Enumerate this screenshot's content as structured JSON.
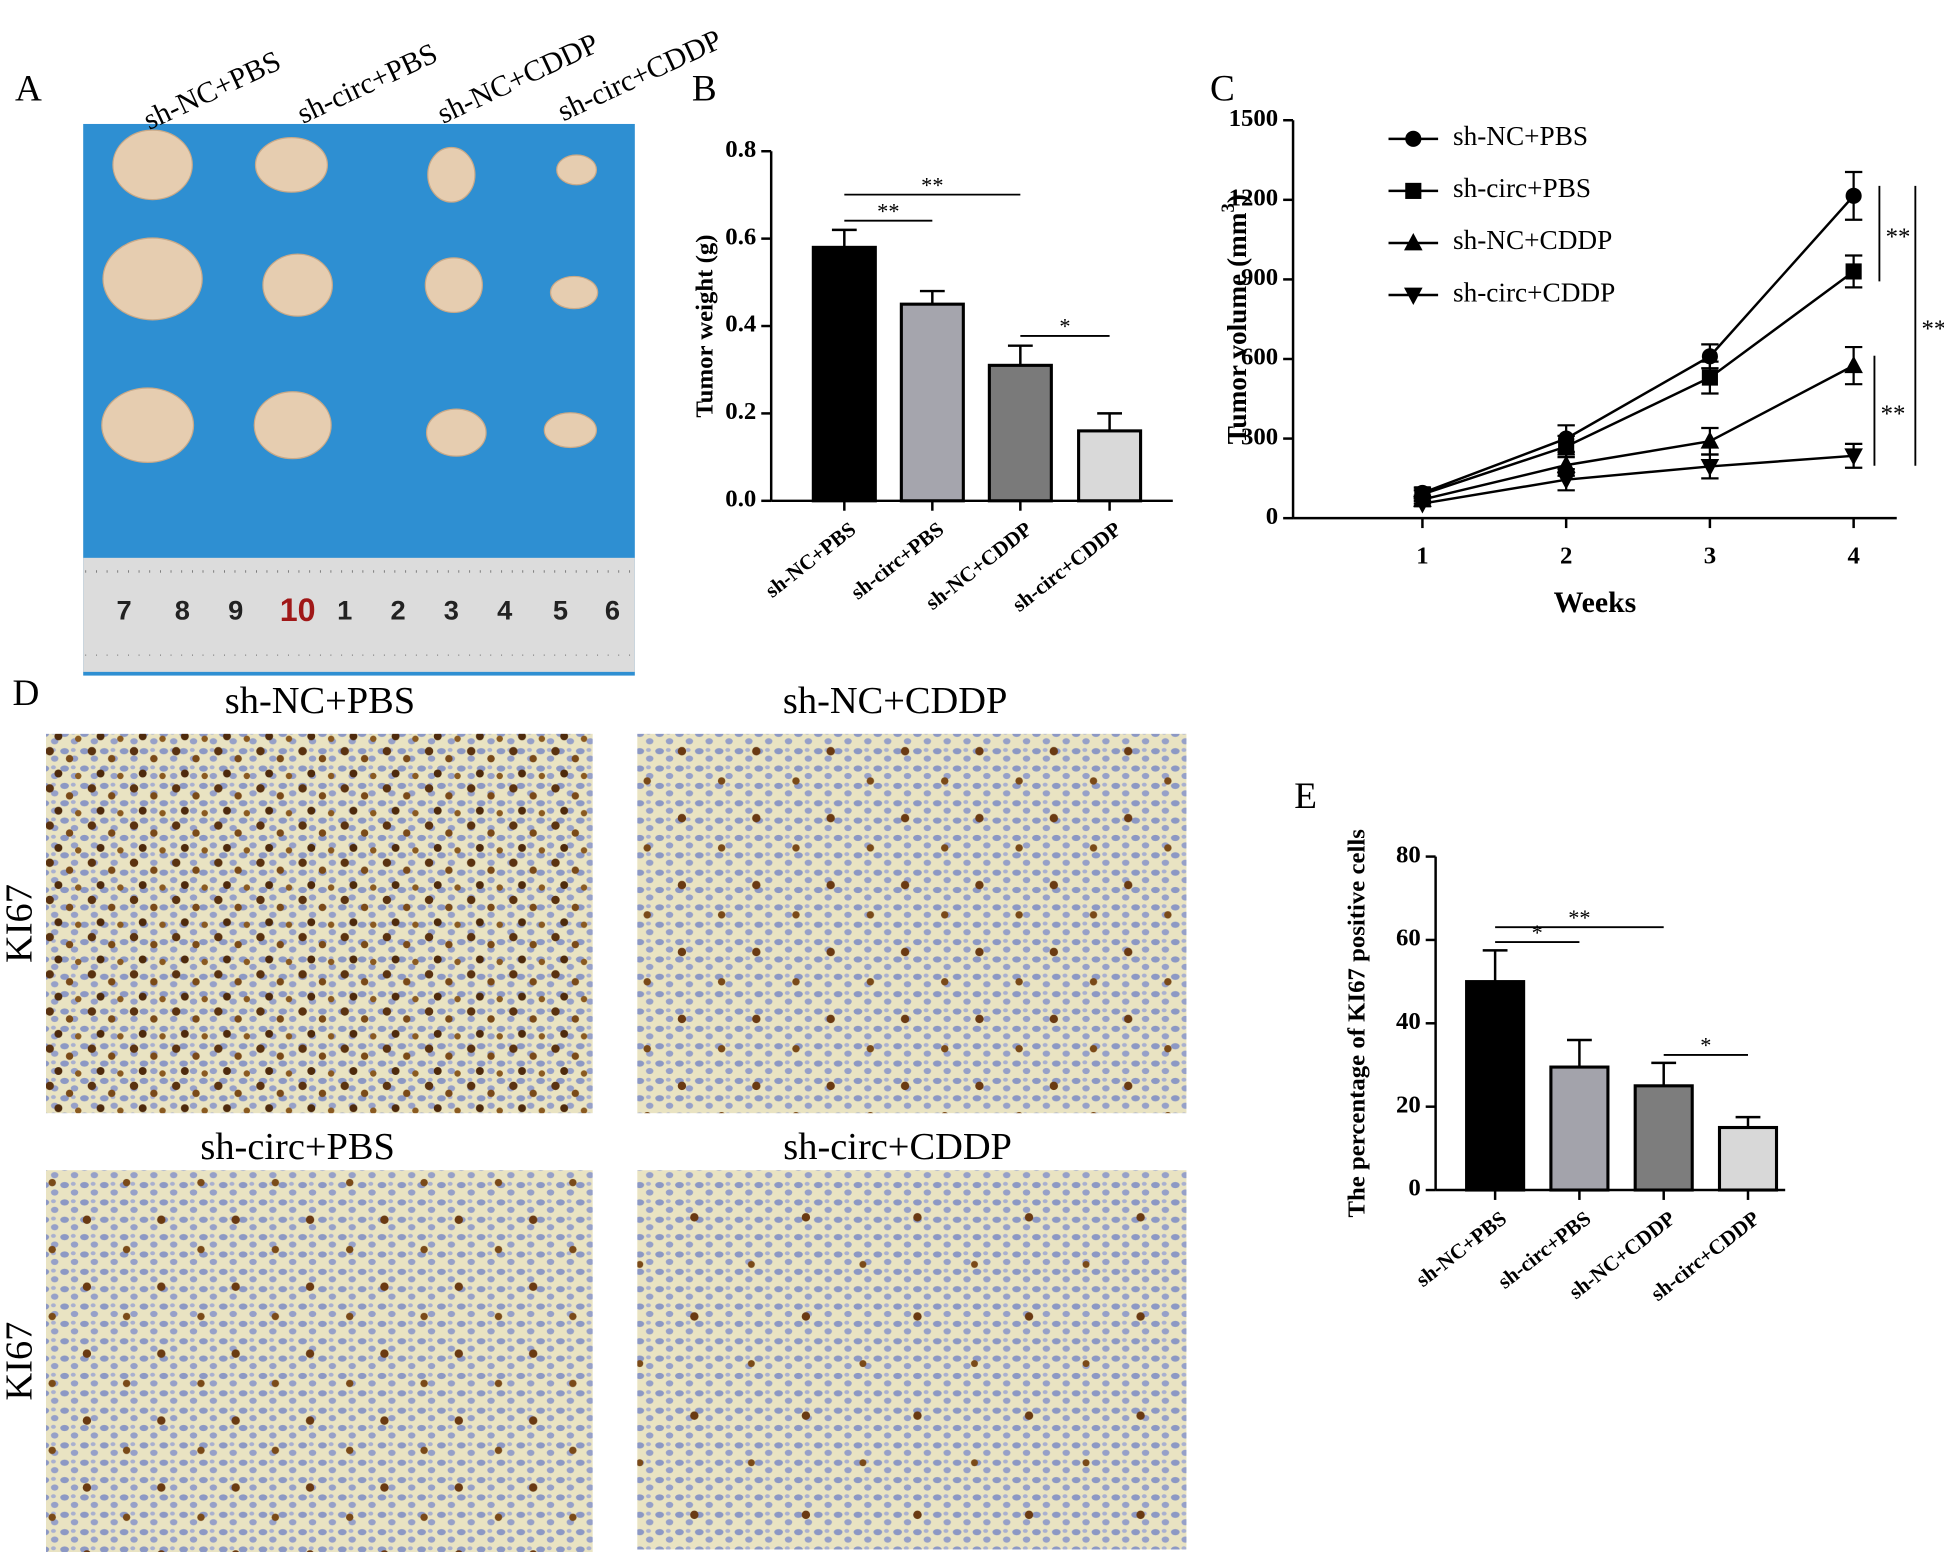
{
  "panel_labels": [
    "A",
    "B",
    "C",
    "D",
    "E"
  ],
  "photo": {
    "column_labels": [
      "sh-NC+PBS",
      "sh-circ+PBS",
      "sh-NC+CDDP",
      "sh-circ+CDDP"
    ],
    "ruler_labels": [
      "7",
      "8",
      "9",
      "10",
      "1",
      "2",
      "3",
      "4",
      "5",
      "6"
    ]
  },
  "ihc": {
    "titles": [
      "sh-NC+PBS",
      "sh-NC+CDDP",
      "sh-circ+PBS",
      "sh-circ+CDDP"
    ],
    "row_labels": [
      "KI67",
      "KI67"
    ]
  },
  "chart_data": [
    {
      "type": "bar",
      "ylabel": "Tumor weight (g)",
      "categories": [
        "sh-NC+PBS",
        "sh-circ+PBS",
        "sh-NC+CDDP",
        "sh-circ+CDDP"
      ],
      "values": [
        0.58,
        0.45,
        0.31,
        0.16
      ],
      "errors": [
        0.04,
        0.03,
        0.045,
        0.04
      ],
      "colors": [
        "#000000",
        "#a5a5ad",
        "#7a7a7a",
        "#d9d9d9"
      ],
      "ylim": [
        0,
        0.8
      ],
      "yticks": [
        {
          "value": 0,
          "label": "0.0"
        },
        0.2,
        0.4,
        0.6,
        0.8
      ],
      "annotations": [
        {
          "text": "**",
          "between": [
            0,
            1
          ]
        },
        {
          "text": "**",
          "between": [
            0,
            2
          ]
        },
        {
          "text": "*",
          "between": [
            2,
            3
          ]
        }
      ]
    },
    {
      "type": "line",
      "ylabel": [
        "Tumor volume (mm",
        "3",
        ")"
      ],
      "xlabel": "Weeks",
      "x": [
        1,
        2,
        3,
        4
      ],
      "xlim": [
        0.1,
        4.3
      ],
      "xticks": [
        1,
        2,
        3,
        4
      ],
      "ylim": [
        0,
        1500
      ],
      "yticks": [
        0,
        300,
        600,
        900,
        1200,
        1500
      ],
      "series": [
        {
          "name": "sh-NC+PBS",
          "color": "#000000",
          "marker": "circle",
          "values": [
            95,
            300,
            610,
            1215
          ],
          "errors": [
            20,
            50,
            45,
            90
          ]
        },
        {
          "name": "sh-circ+PBS",
          "color": "#000000",
          "marker": "square",
          "values": [
            90,
            270,
            530,
            930
          ],
          "errors": [
            15,
            40,
            60,
            60
          ]
        },
        {
          "name": "sh-NC+CDDP",
          "color": "#000000",
          "marker": "triangle-up",
          "values": [
            70,
            200,
            290,
            575
          ],
          "errors": [
            15,
            40,
            50,
            70
          ]
        },
        {
          "name": "sh-circ+CDDP",
          "color": "#000000",
          "marker": "triangle-down",
          "values": [
            55,
            145,
            195,
            235
          ],
          "errors": [
            10,
            40,
            45,
            45
          ]
        }
      ],
      "annotations": [
        {
          "text": "**",
          "between": [
            0,
            1
          ]
        },
        {
          "text": "**",
          "between": [
            0,
            3
          ]
        },
        {
          "text": "**",
          "between": [
            2,
            3
          ]
        }
      ]
    },
    {
      "type": "bar",
      "ylabel": "The percentage of KI67 positive cells",
      "categories": [
        "sh-NC+PBS",
        "sh-circ+PBS",
        "sh-NC+CDDP",
        "sh-circ+CDDP"
      ],
      "values": [
        50,
        29.5,
        25,
        15
      ],
      "errors": [
        7.5,
        6.5,
        5.5,
        2.5
      ],
      "colors": [
        "#000000",
        "#a3a3ab",
        "#7d7d7d",
        "#d8d8d8"
      ],
      "ylim": [
        0,
        80
      ],
      "yticks": [
        0,
        20,
        40,
        60,
        80
      ],
      "annotations": [
        {
          "text": "*",
          "between": [
            0,
            1
          ]
        },
        {
          "text": "**",
          "between": [
            0,
            2
          ]
        },
        {
          "text": "*",
          "between": [
            2,
            3
          ]
        }
      ]
    }
  ]
}
